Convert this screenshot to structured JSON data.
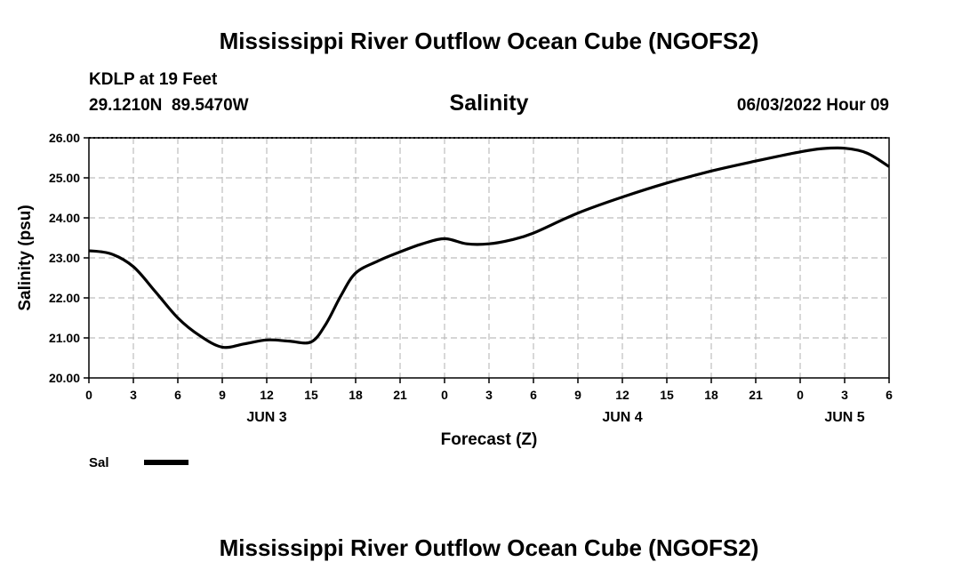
{
  "header": {
    "title": "Mississippi River Outflow Ocean Cube (NGOFS2)",
    "station": "KDLP at 19 Feet",
    "coords": "29.1210N  89.5470W",
    "datetime": "06/03/2022 Hour 09"
  },
  "footer": {
    "title": "Mississippi River Outflow Ocean Cube (NGOFS2)"
  },
  "chart_data": {
    "type": "line",
    "title": "Salinity",
    "xlabel": "Forecast (Z)",
    "ylabel": "Salinity (psu)",
    "xlim": [
      0,
      54
    ],
    "ylim": [
      20.0,
      26.0
    ],
    "grid": true,
    "x_tick_values": [
      0,
      3,
      6,
      9,
      12,
      15,
      18,
      21,
      24,
      27,
      30,
      33,
      36,
      39,
      42,
      45,
      48,
      51,
      54
    ],
    "x_tick_labels": [
      "0",
      "3",
      "6",
      "9",
      "12",
      "15",
      "18",
      "21",
      "0",
      "3",
      "6",
      "9",
      "12",
      "15",
      "18",
      "21",
      "0",
      "3",
      "6"
    ],
    "y_tick_values": [
      20,
      21,
      22,
      23,
      24,
      25,
      26
    ],
    "y_tick_labels": [
      "20.00",
      "21.00",
      "22.00",
      "23.00",
      "24.00",
      "25.00",
      "26.00"
    ],
    "day_labels": [
      {
        "label": "JUN 3",
        "x": 12
      },
      {
        "label": "JUN 4",
        "x": 36
      },
      {
        "label": "JUN 5",
        "x": 51
      }
    ],
    "legend": [
      {
        "name": "Sal",
        "color": "#000000"
      }
    ],
    "series": [
      {
        "name": "Sal",
        "x": [
          0,
          1.5,
          3,
          4.5,
          6,
          7.5,
          9,
          10.5,
          12,
          13.5,
          15,
          16,
          17,
          18,
          19.5,
          21,
          22.5,
          24,
          25.5,
          27,
          28.5,
          30,
          33,
          36,
          39,
          42,
          45,
          48,
          49.5,
          51,
          52.5,
          54
        ],
        "values": [
          23.18,
          23.1,
          22.78,
          22.15,
          21.5,
          21.05,
          20.77,
          20.85,
          20.95,
          20.92,
          20.9,
          21.35,
          22.05,
          22.62,
          22.92,
          23.15,
          23.35,
          23.48,
          23.35,
          23.35,
          23.45,
          23.62,
          24.12,
          24.52,
          24.87,
          25.17,
          25.42,
          25.65,
          25.73,
          25.74,
          25.62,
          25.28
        ]
      }
    ]
  }
}
